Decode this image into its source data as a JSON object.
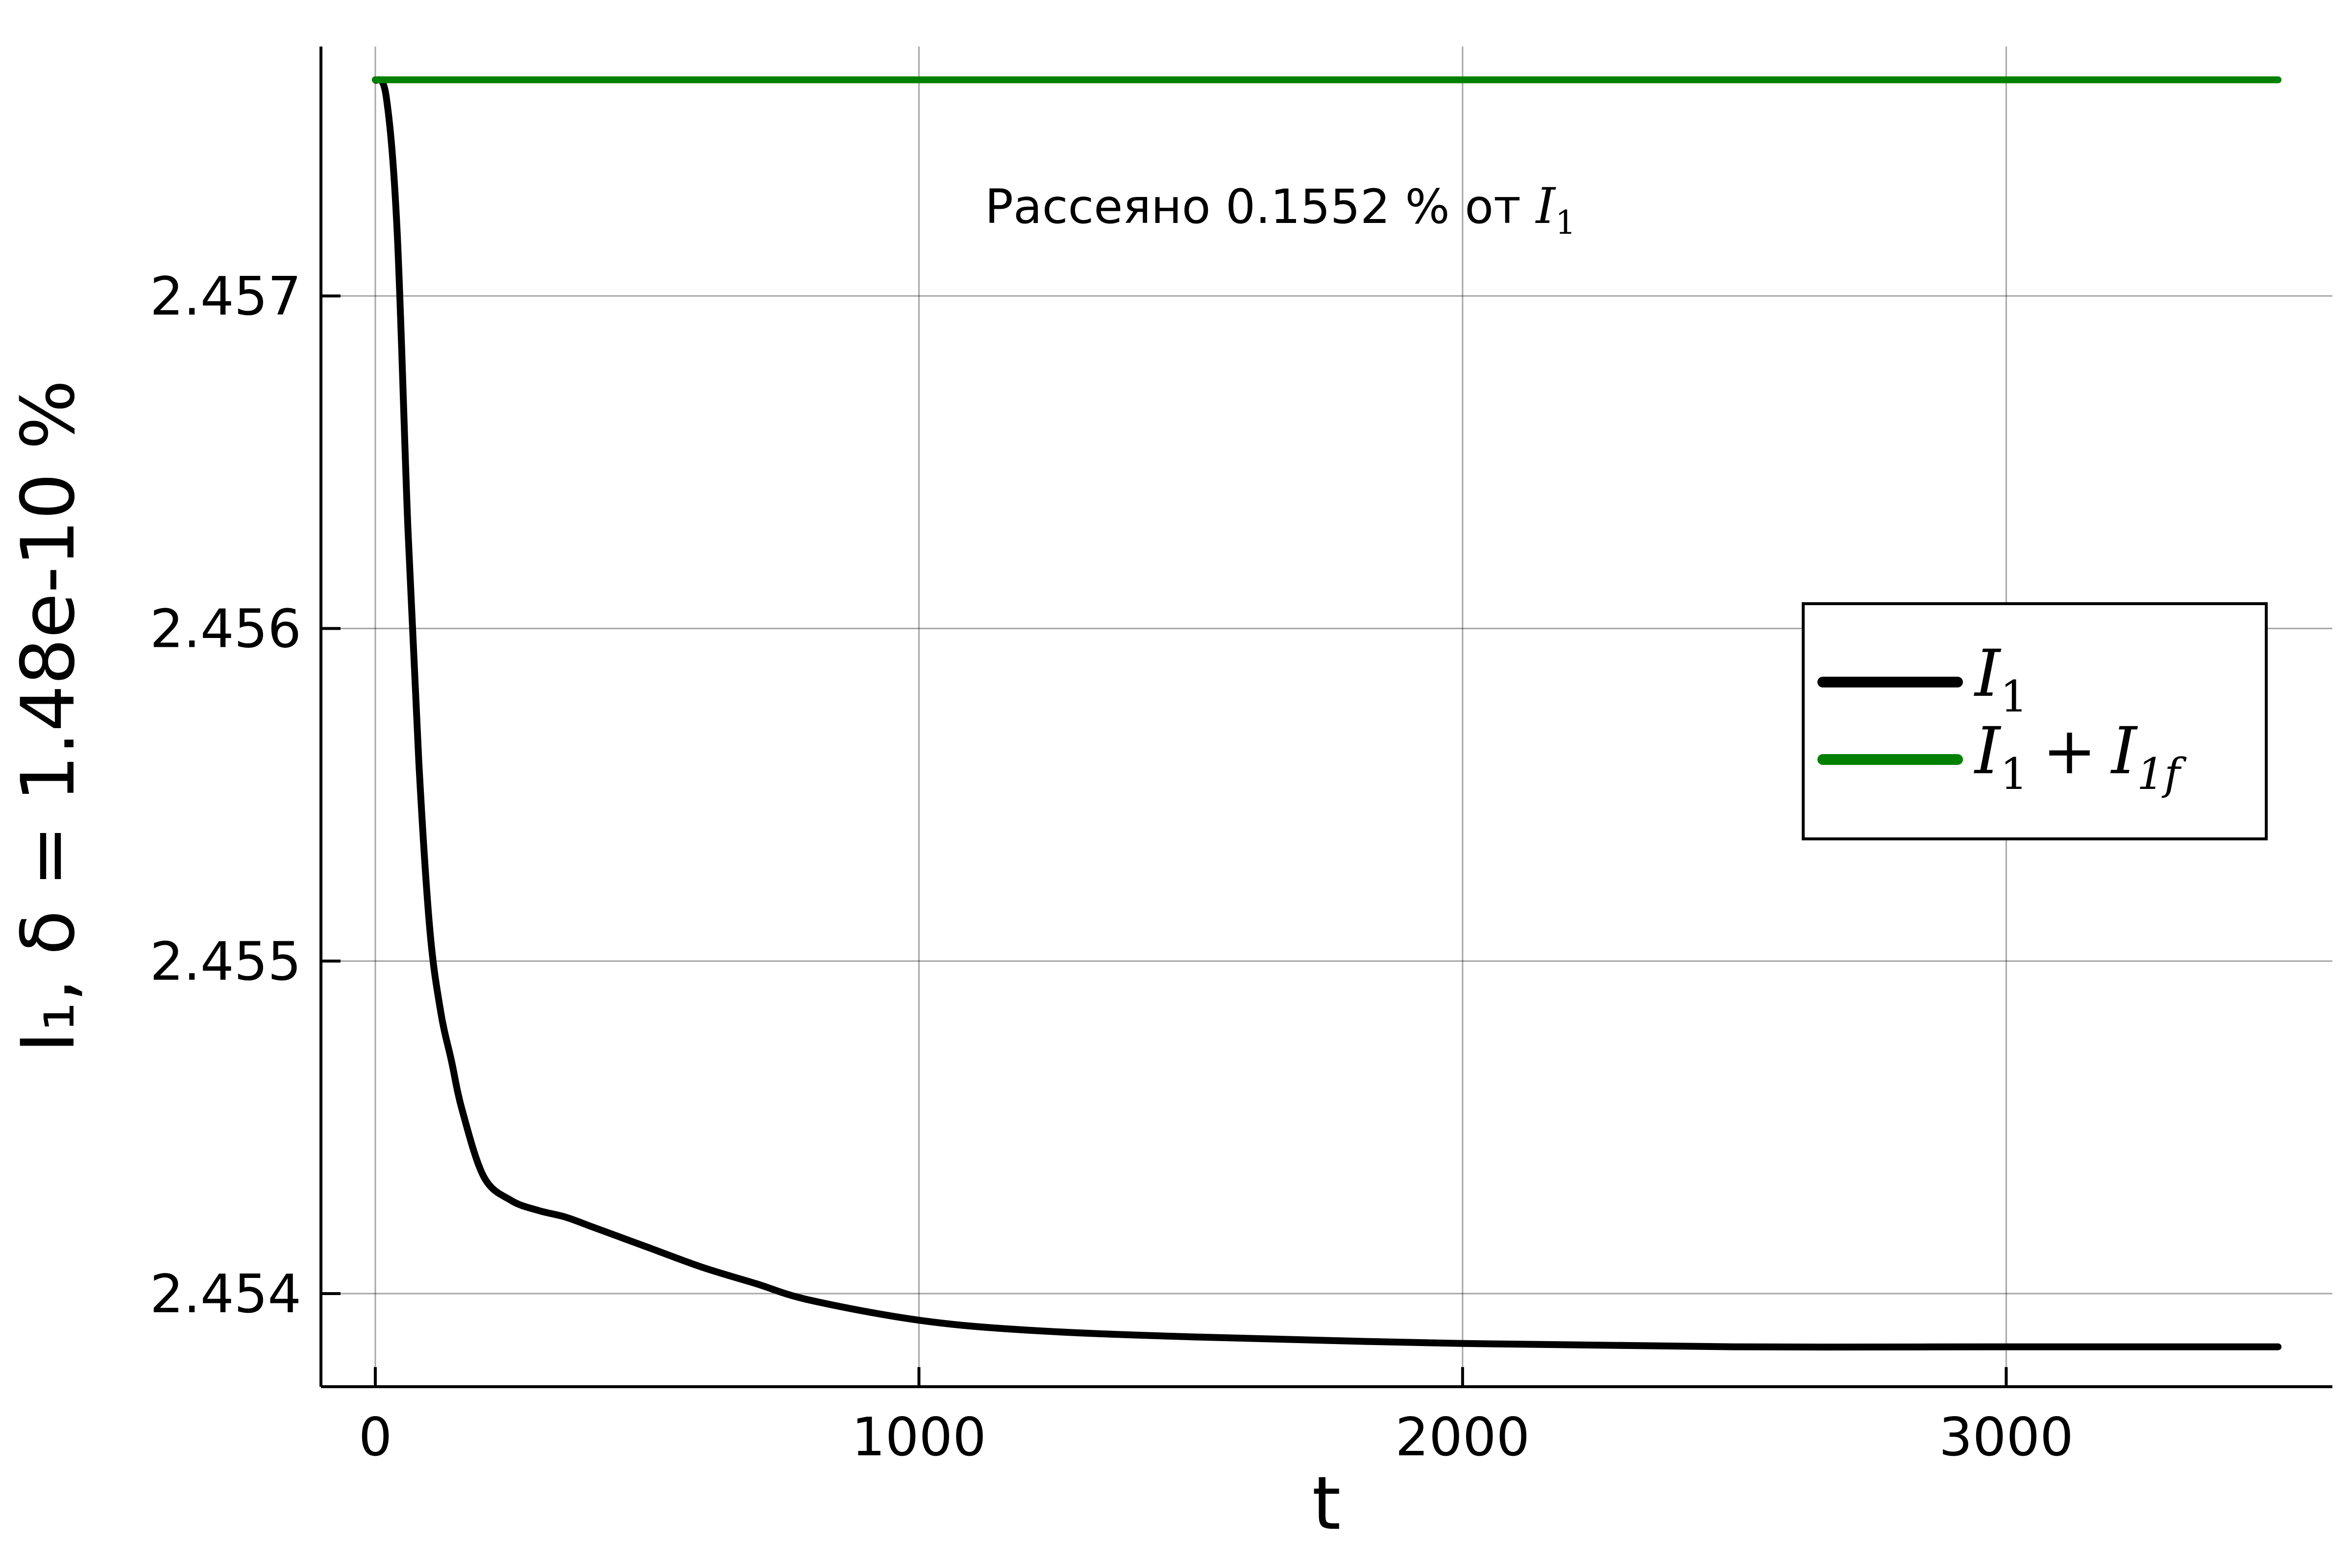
{
  "chart_data": {
    "type": "line",
    "xlabel": "t",
    "ylabel": "I₁, δ = 1.48e-10 %",
    "xlim": [
      -100,
      3600
    ],
    "ylim": [
      2.45372,
      2.45775
    ],
    "xticks": [
      0,
      1000,
      2000,
      3000
    ],
    "yticks": [
      2.454,
      2.455,
      2.456,
      2.457
    ],
    "xtick_labels": [
      "0",
      "1000",
      "2000",
      "3000"
    ],
    "ytick_labels": [
      "2.454",
      "2.455",
      "2.456",
      "2.457"
    ],
    "grid": true,
    "legend_position": "right",
    "annotation": {
      "text_prefix": "Рассеяно 0.1552 % от ",
      "math_main": "I",
      "math_sub": "1"
    },
    "series": [
      {
        "name": "I_1",
        "legend_main": "I",
        "legend_sub": "1",
        "color": "#000000",
        "x": [
          0,
          20,
          40,
          60,
          80,
          100,
          120,
          140,
          160,
          200,
          250,
          300,
          350,
          400,
          450,
          500,
          600,
          700,
          800,
          1000,
          1200,
          1500,
          2000,
          2500,
          3000,
          3500
        ],
        "y": [
          2.45765,
          2.4576,
          2.4572,
          2.4563,
          2.4556,
          2.4551,
          2.45485,
          2.4547,
          2.45455,
          2.45435,
          2.45428,
          2.45425,
          2.45423,
          2.4542,
          2.45417,
          2.45414,
          2.45408,
          2.45403,
          2.45398,
          2.45392,
          2.45389,
          2.45387,
          2.45385,
          2.45384,
          2.45384,
          2.45384
        ]
      },
      {
        "name": "I_1 + I_1f",
        "legend_main": "I",
        "legend_sub": "1",
        "legend_plus": "+",
        "legend_main2": "I",
        "legend_sub2": "1f",
        "color": "#008000",
        "x": [
          0,
          3500
        ],
        "y": [
          2.45765,
          2.45765
        ]
      }
    ]
  }
}
